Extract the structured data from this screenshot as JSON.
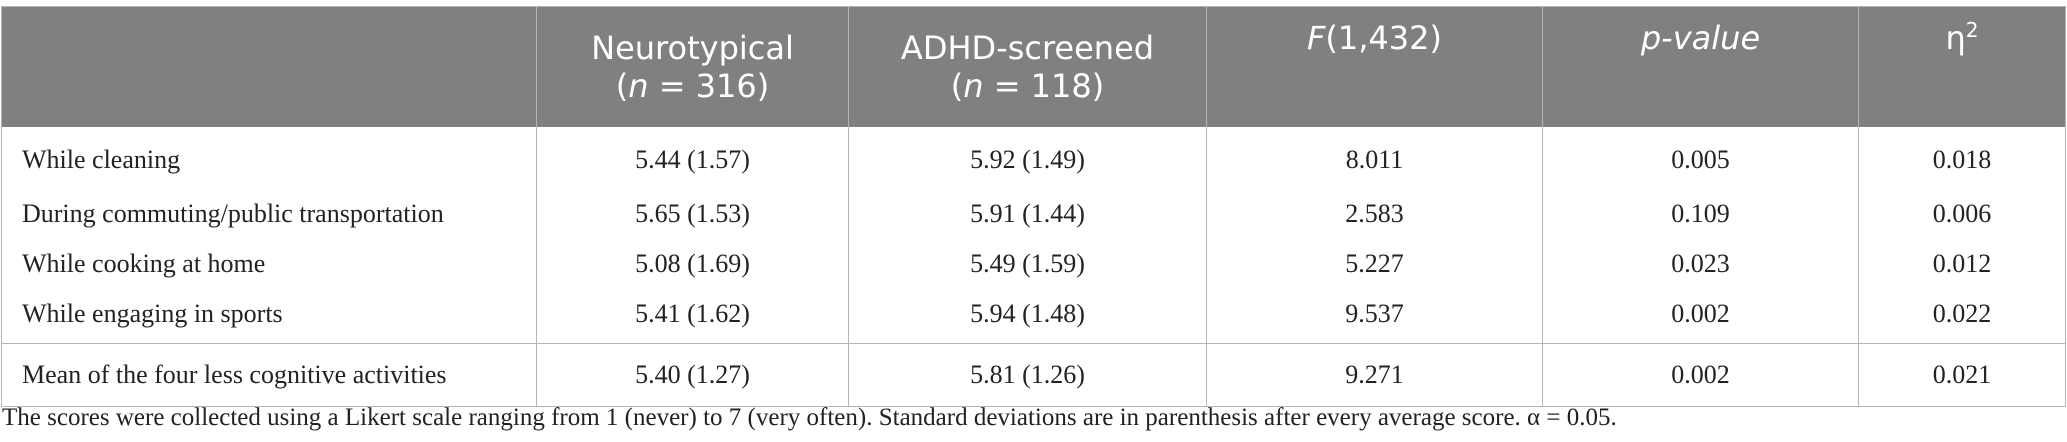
{
  "table": {
    "header": [
      {
        "line1": "Neurotypical",
        "line2": [
          "(",
          "n",
          " = 316)"
        ]
      },
      {
        "line1": "ADHD-screened",
        "line2": [
          "(",
          "n",
          " = 118)"
        ]
      },
      {
        "italic": "F",
        "text": "(1,432)"
      },
      {
        "italic": "p-value"
      },
      {
        "symbol": "η",
        "sup": "2"
      }
    ],
    "rows": [
      [
        "While cleaning",
        "5.44 (1.57)",
        "5.92 (1.49)",
        "8.011",
        "0.005",
        "0.018"
      ],
      [
        "During commuting/public transportation",
        "5.65 (1.53)",
        "5.91 (1.44)",
        "2.583",
        "0.109",
        "0.006"
      ],
      [
        "While cooking at home",
        "5.08 (1.69)",
        "5.49 (1.59)",
        "5.227",
        "0.023",
        "0.012"
      ],
      [
        "While engaging in sports",
        "5.41 (1.62)",
        "5.94 (1.48)",
        "9.537",
        "0.002",
        "0.022"
      ],
      [
        "Mean of the four less cognitive activities",
        "5.40 (1.27)",
        "5.81 (1.26)",
        "9.271",
        "0.002",
        "0.021"
      ]
    ],
    "footnote": "The scores were collected using a Likert scale ranging from 1 (never) to 7 (very often). Standard deviations are in parenthesis after every average score. α = 0.05."
  }
}
